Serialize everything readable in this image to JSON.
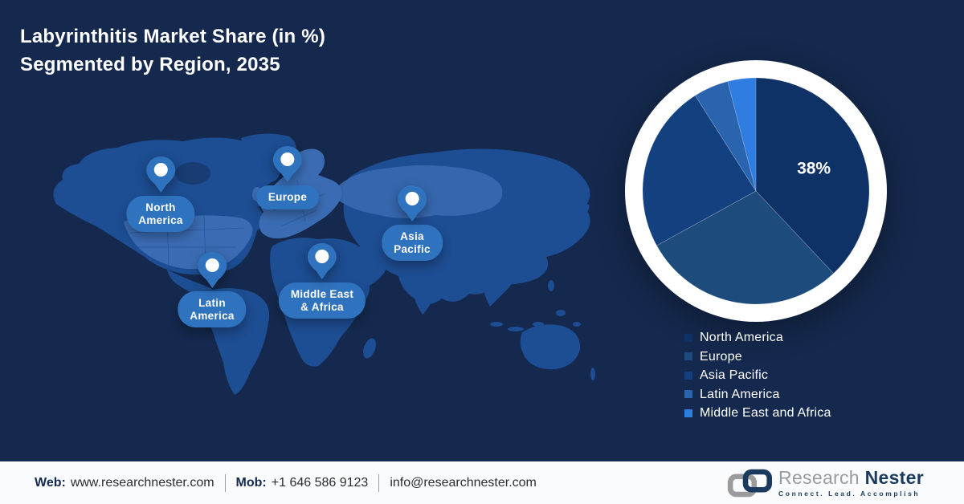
{
  "title": {
    "line1": "Labyrinthitis Market Share (in %)",
    "line2": "Segmented by Region, 2035"
  },
  "map": {
    "pins": [
      {
        "id": "north-america",
        "lines": [
          "North",
          "America"
        ]
      },
      {
        "id": "europe",
        "lines": [
          "Europe",
          ""
        ]
      },
      {
        "id": "asia-pacific",
        "lines": [
          "Asia",
          "Pacific"
        ]
      },
      {
        "id": "middle-east-africa",
        "lines": [
          "Middle East",
          "& Africa"
        ]
      },
      {
        "id": "latin-america",
        "lines": [
          "Latin",
          "America"
        ]
      }
    ]
  },
  "chart_data": {
    "type": "pie",
    "title": "Labyrinthitis Market Share (in %) Segmented by Region, 2035",
    "start_angle_deg": 0,
    "direction": "clockwise",
    "legend_position": "bottom-right",
    "series": [
      {
        "name": "North America",
        "value": 38,
        "label": "38%",
        "color": "#0E3166"
      },
      {
        "name": "Europe",
        "value": 29,
        "label": "",
        "color": "#1D4B7C"
      },
      {
        "name": "Asia Pacific",
        "value": 24,
        "label": "",
        "color": "#134180"
      },
      {
        "name": "Latin America",
        "value": 5,
        "label": "",
        "color": "#2A63AE"
      },
      {
        "name": "Middle East and Africa",
        "value": 4,
        "label": "",
        "color": "#2F7DE0"
      }
    ]
  },
  "footer": {
    "web_label": "Web:",
    "web_value": "www.researchnester.com",
    "mob_label": "Mob:",
    "mob_value": "+1 646 586 9123",
    "email": "info@researchnester.com",
    "logo": {
      "name_gray": "Research",
      "name_navy": "Nester",
      "tagline": "Connect. Lead. Accomplish"
    }
  },
  "colors": {
    "background": "#14294D",
    "map_land": "#1D4D92",
    "map_land_highlight": "#3B6CB3",
    "pin": "#2F73BE",
    "pie_ring": "#FFFFFF",
    "pie_label_text": "#FFFFFF",
    "footer_background": "#FAFBFC",
    "footer_navy": "#14294E",
    "logo_gray": "#9B9B9B",
    "logo_navy": "#1B3A5F"
  }
}
